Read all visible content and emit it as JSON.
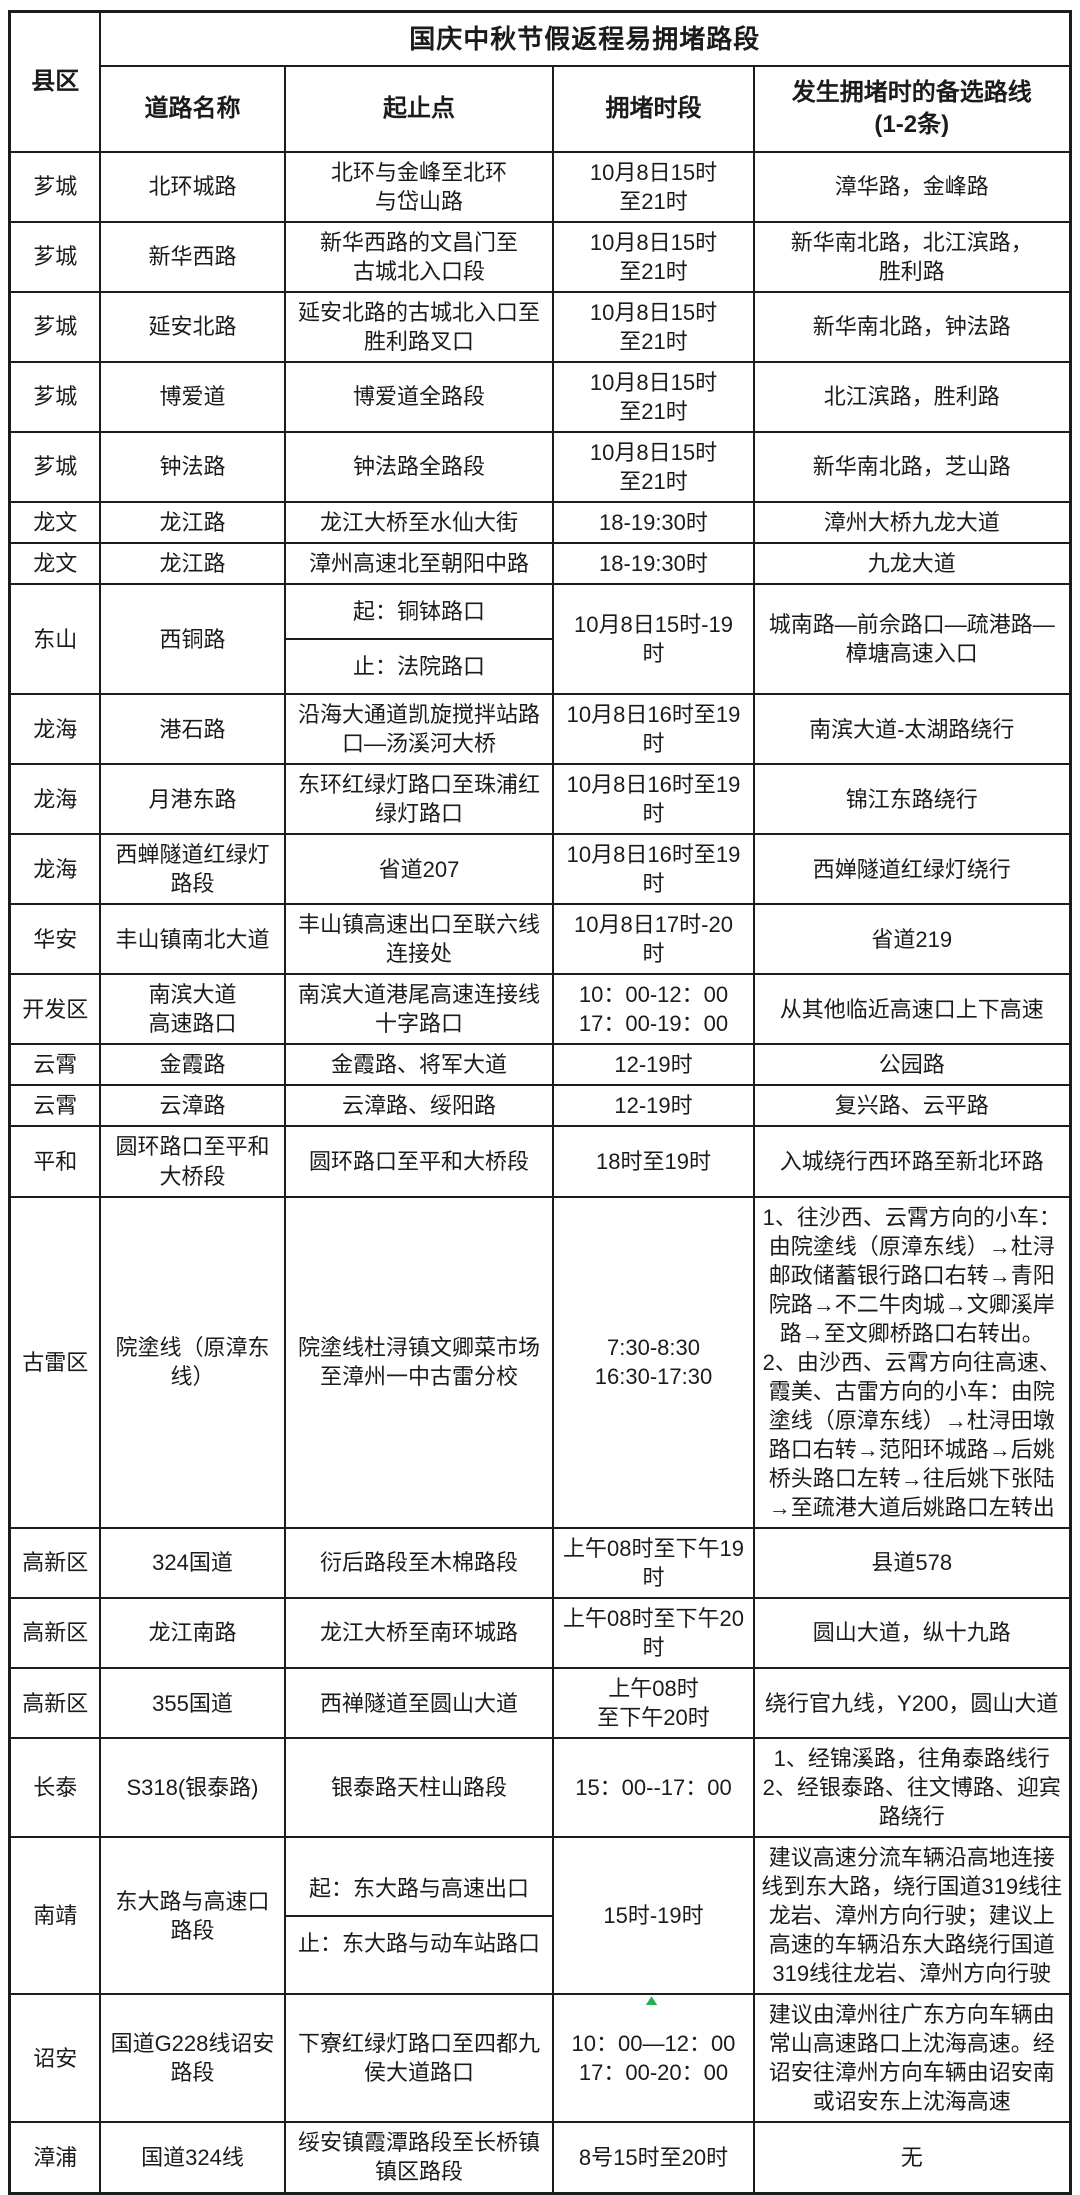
{
  "table": {
    "title": "国庆中秋节假返程易拥堵路段",
    "corner_header": "县区",
    "columns": [
      "道路名称",
      "起止点",
      "拥堵时段",
      "发生拥堵时的备选路线\n(1-2条)"
    ],
    "rows": [
      {
        "county": "芗城",
        "road": "北环城路",
        "segment": "北环与金峰至北环\n与岱山路",
        "time": "10月8日15时\n至21时",
        "alt": "漳华路，金峰路"
      },
      {
        "county": "芗城",
        "road": "新华西路",
        "segment": "新华西路的文昌门至\n古城北入口段",
        "time": "10月8日15时\n至21时",
        "alt": "新华南北路，北江滨路，\n胜利路"
      },
      {
        "county": "芗城",
        "road": "延安北路",
        "segment": "延安北路的古城北入口至\n胜利路叉口",
        "time": "10月8日15时\n至21时",
        "alt": "新华南北路，钟法路"
      },
      {
        "county": "芗城",
        "road": "博爱道",
        "segment": "博爱道全路段",
        "time": "10月8日15时\n至21时",
        "alt": "北江滨路，胜利路"
      },
      {
        "county": "芗城",
        "road": "钟法路",
        "segment": "钟法路全路段",
        "time": "10月8日15时\n至21时",
        "alt": "新华南北路，芝山路"
      },
      {
        "county": "龙文",
        "road": "龙江路",
        "segment": "龙江大桥至水仙大街",
        "time": "18-19:30时",
        "alt": "漳州大桥九龙大道"
      },
      {
        "county": "龙文",
        "road": "龙江路",
        "segment": "漳州高速北至朝阳中路",
        "time": "18-19:30时",
        "alt": "九龙大道"
      },
      {
        "county": "东山",
        "road": "西铜路",
        "segment_split": [
          "起：铜钵路口",
          "止：法院路口"
        ],
        "time": "10月8日15时-19\n时",
        "alt": "城南路—前佘路口—疏港路—\n樟塘高速入口"
      },
      {
        "county": "龙海",
        "road": "港石路",
        "segment": "沿海大通道凯旋搅拌站路\n口—汤溪河大桥",
        "time": "10月8日16时至19\n时",
        "alt": "南滨大道-太湖路绕行"
      },
      {
        "county": "龙海",
        "road": "月港东路",
        "segment": "东环红绿灯路口至珠浦红\n绿灯路口",
        "time": "10月8日16时至19\n时",
        "alt": "锦江东路绕行"
      },
      {
        "county": "龙海",
        "road": "西蝉隧道红绿灯\n路段",
        "segment": "省道207",
        "time": "10月8日16时至19\n时",
        "alt": "西婵隧道红绿灯绕行"
      },
      {
        "county": "华安",
        "road": "丰山镇南北大道",
        "segment": "丰山镇高速出口至联六线\n连接处",
        "time": "10月8日17时-20\n时",
        "alt": "省道219"
      },
      {
        "county": "开发区",
        "road": "南滨大道\n高速路口",
        "segment": "南滨大道港尾高速连接线\n十字路口",
        "time": "10：00-12：00\n17：00-19：00",
        "alt": "从其他临近高速口上下高速"
      },
      {
        "county": "云霄",
        "road": "金霞路",
        "segment": "金霞路、将军大道",
        "time": "12-19时",
        "alt": "公园路"
      },
      {
        "county": "云霄",
        "road": "云漳路",
        "segment": "云漳路、绥阳路",
        "time": "12-19时",
        "alt": "复兴路、云平路"
      },
      {
        "county": "平和",
        "road": "圆环路口至平和\n大桥段",
        "segment": "圆环路口至平和大桥段",
        "time": "18时至19时",
        "alt": "入城绕行西环路至新北环路"
      },
      {
        "county": "古雷区",
        "road": "院塗线（原漳东\n线）",
        "segment": "院塗线杜浔镇文卿菜市场\n至漳州一中古雷分校",
        "time": "7:30-8:30\n16:30-17:30",
        "alt": "1、往沙西、云霄方向的小车：\n由院塗线（原漳东线）→杜浔\n邮政储蓄银行路口右转→青阳\n院路→不二牛肉城→文卿溪岸\n路→至文卿桥路口右转出。\n2、由沙西、云霄方向往高速、\n霞美、古雷方向的小车：由院\n塗线（原漳东线）→杜浔田墩\n路口右转→范阳环城路→后姚\n桥头路口左转→往后姚下张陆\n→至疏港大道后姚路口左转出"
      },
      {
        "county": "高新区",
        "road": "324国道",
        "segment": "衍后路段至木棉路段",
        "time": "上午08时至下午19\n时",
        "alt": "县道578"
      },
      {
        "county": "高新区",
        "road": "龙江南路",
        "segment": "龙江大桥至南环城路",
        "time": "上午08时至下午20\n时",
        "alt": "圆山大道，纵十九路"
      },
      {
        "county": "高新区",
        "road": "355国道",
        "segment": "西禅隧道至圆山大道",
        "time": "上午08时\n至下午20时",
        "alt": "绕行官九线，Y200，圆山大道"
      },
      {
        "county": "长泰",
        "road": "S318(银泰路)",
        "segment": "银泰路天柱山路段",
        "time": "15：00--17：00",
        "alt": "1、经锦溪路，往角泰路线行\n2、经银泰路、往文博路、迎宾\n路绕行"
      },
      {
        "county": "南靖",
        "road": "东大路与高速口\n路段",
        "segment_split": [
          "起：东大路与高速出口",
          "止：东大路与动车站路口"
        ],
        "time": "15时-19时",
        "alt": "建议高速分流车辆沿高地连接\n线到东大路，绕行国道319线往\n龙岩、漳州方向行驶；建议上\n高速的车辆沿东大路绕行国道\n319线往龙岩、漳州方向行驶"
      },
      {
        "county": "诏安",
        "road": "国道G228线诏安\n路段",
        "segment": "下寮红绿灯路口至四都九\n侯大道路口",
        "time": "10：00—12：00\n17：00-20：00",
        "time_mark": true,
        "alt": "建议由漳州往广东方向车辆由\n常山高速路口上沈海高速。经\n诏安往漳州方向车辆由诏安南\n或诏安东上沈海高速"
      },
      {
        "county": "漳浦",
        "road": "国道324线",
        "segment": "绥安镇霞潭路段至长桥镇\n镇区路段",
        "time": "8号15时至20时",
        "alt": "无"
      }
    ]
  },
  "colors": {
    "border": "#1c1c1c",
    "text": "#1b1b1b",
    "background": "#ffffff",
    "green_mark": "#22b14c"
  }
}
